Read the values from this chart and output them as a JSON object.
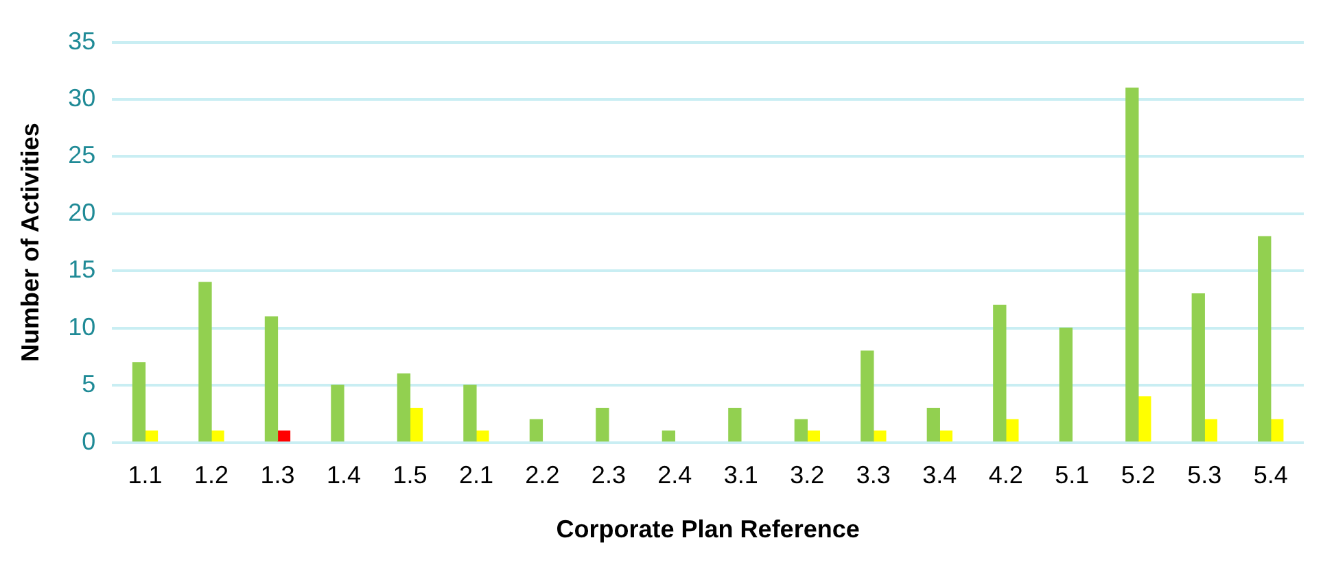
{
  "chart_data": {
    "type": "bar",
    "xlabel": "Corporate Plan Reference",
    "ylabel": "Number of Activities",
    "categories": [
      "1.1",
      "1.2",
      "1.3",
      "1.4",
      "1.5",
      "2.1",
      "2.2",
      "2.3",
      "2.4",
      "3.1",
      "3.2",
      "3.3",
      "3.4",
      "4.2",
      "5.1",
      "5.2",
      "5.3",
      "5.4"
    ],
    "series": [
      {
        "color": "#92d050",
        "values": [
          7,
          14,
          11,
          5,
          6,
          5,
          2,
          3,
          1,
          3,
          2,
          8,
          3,
          12,
          10,
          31,
          13,
          18
        ]
      },
      {
        "colors": [
          "#ffff00",
          "#ffff00",
          "#ff0000",
          "#ffff00",
          "#ffff00",
          "#ffff00",
          "#ffff00",
          "#ffff00",
          "#ffff00",
          "#ffff00",
          "#ffff00",
          "#ffff00",
          "#ffff00",
          "#ffff00",
          "#ffff00",
          "#ffff00",
          "#ffff00",
          "#ffff00"
        ],
        "values": [
          1,
          1,
          1,
          null,
          3,
          1,
          null,
          null,
          null,
          null,
          1,
          1,
          1,
          2,
          null,
          4,
          2,
          2
        ]
      }
    ],
    "ylim": [
      0,
      35
    ],
    "yticks": [
      0,
      5,
      10,
      15,
      20,
      25,
      30,
      35
    ],
    "grid": "y",
    "legend": false
  }
}
